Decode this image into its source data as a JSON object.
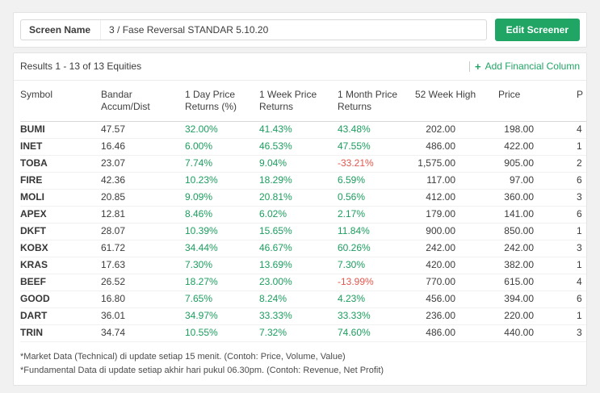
{
  "colors": {
    "accent_green": "#20a565",
    "positive": "#1b9e5e",
    "negative": "#e2574d"
  },
  "header": {
    "screen_name_label": "Screen Name",
    "screen_name_value": "3 / Fase Reversal STANDAR 5.10.20",
    "edit_button_label": "Edit Screener"
  },
  "toolbar": {
    "results_text": "Results 1 - 13 of 13 Equities",
    "add_column_icon": "+",
    "add_column_label": "Add Financial Column"
  },
  "table": {
    "columns": [
      "Symbol",
      "Bandar Accum/Dist",
      "1 Day Price Returns (%)",
      "1 Week Price Returns",
      "1 Month Price Returns",
      "52 Week High",
      "Price",
      "P"
    ],
    "rows": [
      {
        "symbol": "BUMI",
        "bandar_accum_dist": "47.57",
        "day_1": "32.00%",
        "week_1": "41.43%",
        "month_1": "43.48%",
        "week52_high": "202.00",
        "price": "198.00",
        "next_partial": "4"
      },
      {
        "symbol": "INET",
        "bandar_accum_dist": "16.46",
        "day_1": "6.00%",
        "week_1": "46.53%",
        "month_1": "47.55%",
        "week52_high": "486.00",
        "price": "422.00",
        "next_partial": "1"
      },
      {
        "symbol": "TOBA",
        "bandar_accum_dist": "23.07",
        "day_1": "7.74%",
        "week_1": "9.04%",
        "month_1": "-33.21%",
        "week52_high": "1,575.00",
        "price": "905.00",
        "next_partial": "2"
      },
      {
        "symbol": "FIRE",
        "bandar_accum_dist": "42.36",
        "day_1": "10.23%",
        "week_1": "18.29%",
        "month_1": "6.59%",
        "week52_high": "117.00",
        "price": "97.00",
        "next_partial": "6"
      },
      {
        "symbol": "MOLI",
        "bandar_accum_dist": "20.85",
        "day_1": "9.09%",
        "week_1": "20.81%",
        "month_1": "0.56%",
        "week52_high": "412.00",
        "price": "360.00",
        "next_partial": "3"
      },
      {
        "symbol": "APEX",
        "bandar_accum_dist": "12.81",
        "day_1": "8.46%",
        "week_1": "6.02%",
        "month_1": "2.17%",
        "week52_high": "179.00",
        "price": "141.00",
        "next_partial": "6"
      },
      {
        "symbol": "DKFT",
        "bandar_accum_dist": "28.07",
        "day_1": "10.39%",
        "week_1": "15.65%",
        "month_1": "11.84%",
        "week52_high": "900.00",
        "price": "850.00",
        "next_partial": "1"
      },
      {
        "symbol": "KOBX",
        "bandar_accum_dist": "61.72",
        "day_1": "34.44%",
        "week_1": "46.67%",
        "month_1": "60.26%",
        "week52_high": "242.00",
        "price": "242.00",
        "next_partial": "3"
      },
      {
        "symbol": "KRAS",
        "bandar_accum_dist": "17.63",
        "day_1": "7.30%",
        "week_1": "13.69%",
        "month_1": "7.30%",
        "week52_high": "420.00",
        "price": "382.00",
        "next_partial": "1"
      },
      {
        "symbol": "BEEF",
        "bandar_accum_dist": "26.52",
        "day_1": "18.27%",
        "week_1": "23.00%",
        "month_1": "-13.99%",
        "week52_high": "770.00",
        "price": "615.00",
        "next_partial": "4"
      },
      {
        "symbol": "GOOD",
        "bandar_accum_dist": "16.80",
        "day_1": "7.65%",
        "week_1": "8.24%",
        "month_1": "4.23%",
        "week52_high": "456.00",
        "price": "394.00",
        "next_partial": "6"
      },
      {
        "symbol": "DART",
        "bandar_accum_dist": "36.01",
        "day_1": "34.97%",
        "week_1": "33.33%",
        "month_1": "33.33%",
        "week52_high": "236.00",
        "price": "220.00",
        "next_partial": "1"
      },
      {
        "symbol": "TRIN",
        "bandar_accum_dist": "34.74",
        "day_1": "10.55%",
        "week_1": "7.32%",
        "month_1": "74.60%",
        "week52_high": "486.00",
        "price": "440.00",
        "next_partial": "3"
      }
    ]
  },
  "footnotes": [
    "*Market Data (Technical) di update setiap 15 menit. (Contoh: Price, Volume, Value)",
    "*Fundamental Data di update setiap akhir hari pukul 06.30pm. (Contoh: Revenue, Net Profit)"
  ]
}
